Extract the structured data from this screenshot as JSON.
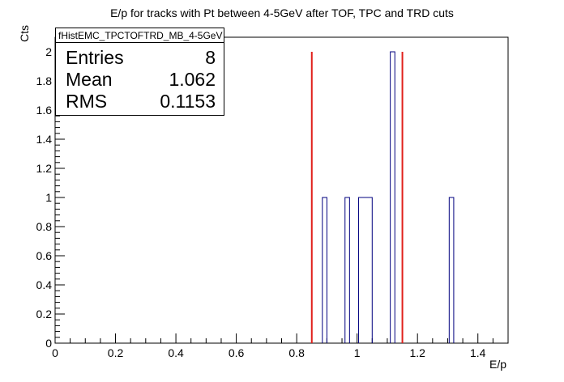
{
  "chart_data": {
    "type": "histogram",
    "title": "E/p for tracks with Pt between 4-5GeV after TOF, TPC and TRD cuts",
    "xlabel": "E/p",
    "ylabel": "Cts",
    "xlim": [
      0,
      1.5
    ],
    "ylim": [
      0,
      2.1
    ],
    "x_ticks": [
      "0",
      "0.2",
      "0.4",
      "0.6",
      "0.8",
      "1",
      "1.2",
      "1.4"
    ],
    "y_ticks": [
      "0",
      "0.2",
      "0.4",
      "0.6",
      "0.8",
      "1",
      "1.2",
      "1.4",
      "1.6",
      "1.8",
      "2"
    ],
    "bins": [
      {
        "x0": 0.885,
        "x1": 0.9,
        "y": 1
      },
      {
        "x0": 0.96,
        "x1": 0.975,
        "y": 1
      },
      {
        "x0": 1.005,
        "x1": 1.05,
        "y": 1
      },
      {
        "x0": 1.11,
        "x1": 1.125,
        "y": 2
      },
      {
        "x0": 1.305,
        "x1": 1.32,
        "y": 1
      }
    ],
    "cut_lines": [
      0.85,
      1.15
    ],
    "colors": {
      "histogram": "#00007f",
      "cuts": "#e0201b",
      "axes": "#000000"
    },
    "legend": "top-left",
    "grid": false
  },
  "stats": {
    "name": "fHistEMC_TPCTOFTRD_MB_4-5GeV",
    "entries_label": "Entries",
    "entries_value": "8",
    "mean_label": "Mean",
    "mean_value": "1.062",
    "rms_label": "RMS",
    "rms_value": "0.1153"
  }
}
